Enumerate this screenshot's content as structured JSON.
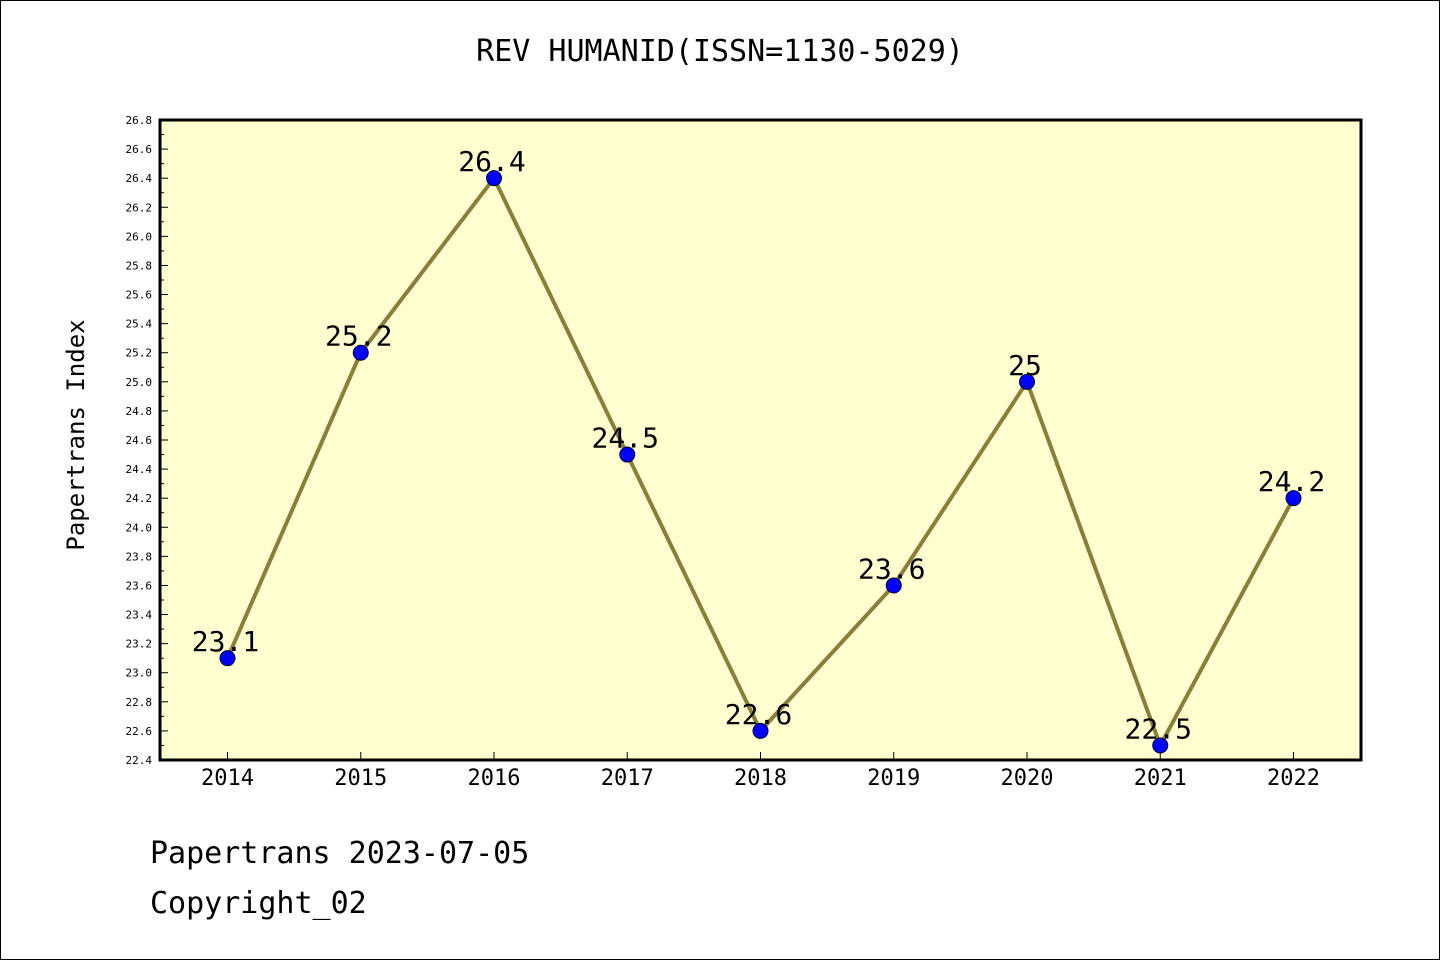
{
  "chart_data": {
    "type": "line",
    "title": "REV HUMANID(ISSN=1130-5029)",
    "ylabel": "Papertrans Index",
    "xlabel": "",
    "categories": [
      "2014",
      "2015",
      "2016",
      "2017",
      "2018",
      "2019",
      "2020",
      "2021",
      "2022"
    ],
    "values": [
      23.1,
      25.2,
      26.4,
      24.5,
      22.6,
      23.6,
      25,
      22.5,
      24.2
    ],
    "data_labels": [
      "23.1",
      "25.2",
      "26.4",
      "24.5",
      "22.6",
      "23.6",
      "25",
      "22.5",
      "24.2"
    ],
    "ylim": [
      22.4,
      26.8
    ],
    "yticks": [
      "22.4",
      "22.6",
      "22.8",
      "23.0",
      "23.2",
      "23.4",
      "23.6",
      "23.8",
      "24.0",
      "24.2",
      "24.4",
      "24.6",
      "24.8",
      "25.0",
      "25.2",
      "25.4",
      "25.6",
      "25.8",
      "26.0",
      "26.2",
      "26.4",
      "26.6",
      "26.8"
    ],
    "grid": false,
    "colors": {
      "plot_background": "#ffffd0",
      "line": "#8b7d3a",
      "marker": "#0000ff"
    }
  },
  "footer": {
    "date_line": "Papertrans 2023-07-05",
    "copyright": "Copyright_02"
  }
}
